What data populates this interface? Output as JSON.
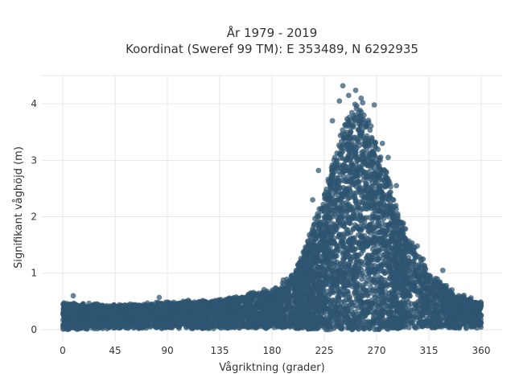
{
  "chart_data": {
    "type": "scatter",
    "title": "År 1979 - 2019",
    "subtitle": "Koordinat (Sweref 99 TM): E 353489, N 6292935",
    "xlabel": "Vågriktning (grader)",
    "ylabel": "Signifikant våghöjd (m)",
    "xlim": [
      -18,
      378
    ],
    "ylim": [
      -0.2,
      4.5
    ],
    "xticks": [
      0,
      45,
      90,
      135,
      180,
      225,
      270,
      315,
      360
    ],
    "yticks": [
      0,
      1,
      2,
      3,
      4
    ],
    "grid": true,
    "legend": "none",
    "marker_color": "#2e5570",
    "profile": {
      "x": [
        0,
        45,
        90,
        135,
        180,
        200,
        225,
        240,
        255,
        270,
        290,
        315,
        340,
        360
      ],
      "y_min": [
        0.0,
        0.02,
        0.02,
        0.02,
        0.02,
        0.02,
        0.0,
        0.0,
        0.0,
        0.0,
        0.02,
        0.02,
        0.02,
        0.02
      ],
      "y_max": [
        0.5,
        0.45,
        0.5,
        0.55,
        0.75,
        1.05,
        2.4,
        3.6,
        4.2,
        3.4,
        2.0,
        1.05,
        0.65,
        0.5
      ]
    },
    "outliers": [
      {
        "x": 241,
        "y": 4.32
      },
      {
        "x": 252,
        "y": 4.24
      },
      {
        "x": 246,
        "y": 4.15
      },
      {
        "x": 238,
        "y": 4.05
      },
      {
        "x": 258,
        "y": 4.02
      },
      {
        "x": 268,
        "y": 3.98
      },
      {
        "x": 232,
        "y": 3.7
      },
      {
        "x": 275,
        "y": 3.3
      },
      {
        "x": 280,
        "y": 3.05
      },
      {
        "x": 287,
        "y": 2.55
      },
      {
        "x": 220,
        "y": 2.82
      },
      {
        "x": 215,
        "y": 2.3
      },
      {
        "x": 305,
        "y": 1.48
      },
      {
        "x": 310,
        "y": 1.25
      },
      {
        "x": 327,
        "y": 1.05
      },
      {
        "x": 9,
        "y": 0.6
      },
      {
        "x": 83,
        "y": 0.57
      },
      {
        "x": 108,
        "y": 0.52
      }
    ]
  }
}
